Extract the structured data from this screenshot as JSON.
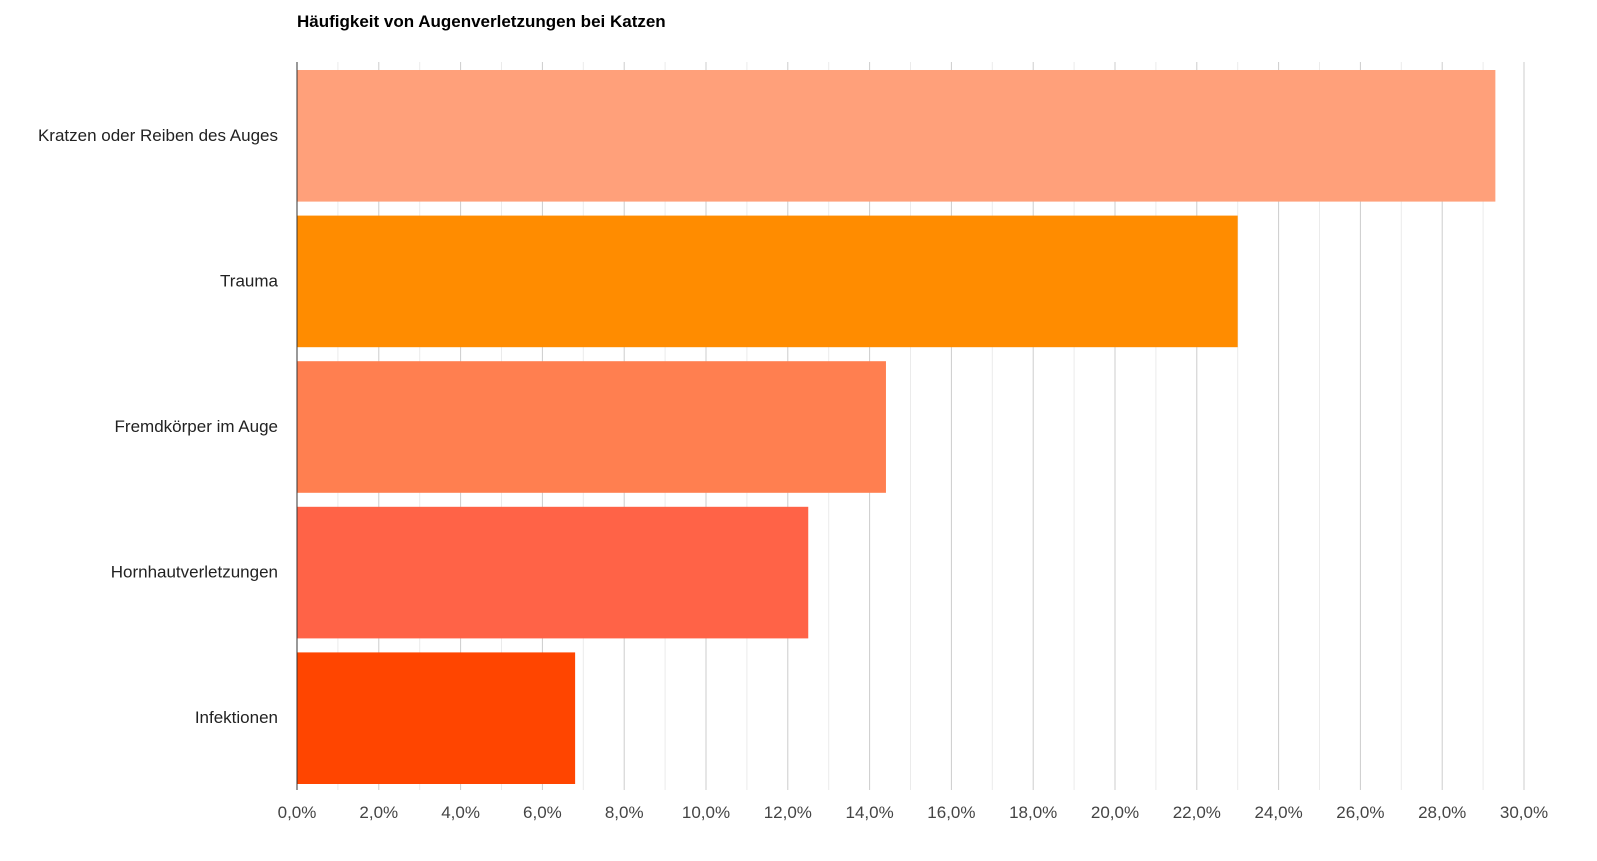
{
  "chart_data": {
    "type": "bar",
    "orientation": "horizontal",
    "title": "Häufigkeit von Augenverletzungen bei Katzen",
    "categories": [
      "Kratzen oder Reiben des Auges",
      "Trauma",
      "Fremdkörper im Auge",
      "Hornhautverletzungen",
      "Infektionen"
    ],
    "values": [
      29.3,
      23.0,
      14.4,
      12.5,
      6.8
    ],
    "colors": [
      "#FFA07A",
      "#FF8C00",
      "#FF7F50",
      "#FF6347",
      "#FF4500"
    ],
    "xlabel": "",
    "ylabel": "",
    "xlim": [
      0,
      30
    ],
    "xticks": [
      "0,0%",
      "2,0%",
      "4,0%",
      "6,0%",
      "8,0%",
      "10,0%",
      "12,0%",
      "14,0%",
      "16,0%",
      "18,0%",
      "20,0%",
      "22,0%",
      "24,0%",
      "26,0%",
      "28,0%",
      "30,0%"
    ],
    "grid": true,
    "legend": "none"
  }
}
